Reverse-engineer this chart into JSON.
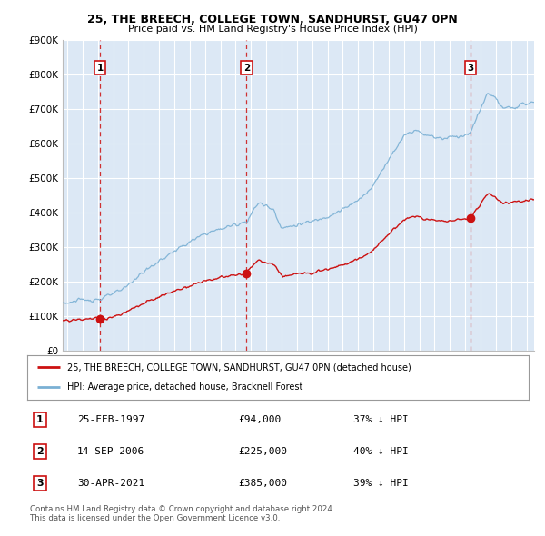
{
  "title": "25, THE BREECH, COLLEGE TOWN, SANDHURST, GU47 0PN",
  "subtitle": "Price paid vs. HM Land Registry's House Price Index (HPI)",
  "background_color": "#ffffff",
  "plot_bg_color": "#dce8f5",
  "grid_color": "#ffffff",
  "ylim": [
    0,
    900000
  ],
  "yticks": [
    0,
    100000,
    200000,
    300000,
    400000,
    500000,
    600000,
    700000,
    800000,
    900000
  ],
  "ytick_labels": [
    "£0",
    "£100K",
    "£200K",
    "£300K",
    "£400K",
    "£500K",
    "£600K",
    "£700K",
    "£800K",
    "£900K"
  ],
  "xlim_start": 1994.7,
  "xlim_end": 2025.5,
  "sale_dates": [
    1997.13,
    2006.71,
    2021.33
  ],
  "sale_prices": [
    94000,
    225000,
    385000
  ],
  "sale_labels": [
    "1",
    "2",
    "3"
  ],
  "hpi_line_color": "#7ab0d4",
  "price_line_color": "#cc1111",
  "sale_dot_color": "#cc1111",
  "vline_color": "#cc1111",
  "legend_label_price": "25, THE BREECH, COLLEGE TOWN, SANDHURST, GU47 0PN (detached house)",
  "legend_label_hpi": "HPI: Average price, detached house, Bracknell Forest",
  "table_data": [
    [
      "1",
      "25-FEB-1997",
      "£94,000",
      "37% ↓ HPI"
    ],
    [
      "2",
      "14-SEP-2006",
      "£225,000",
      "40% ↓ HPI"
    ],
    [
      "3",
      "30-APR-2021",
      "£385,000",
      "39% ↓ HPI"
    ]
  ],
  "footer": "Contains HM Land Registry data © Crown copyright and database right 2024.\nThis data is licensed under the Open Government Licence v3.0."
}
